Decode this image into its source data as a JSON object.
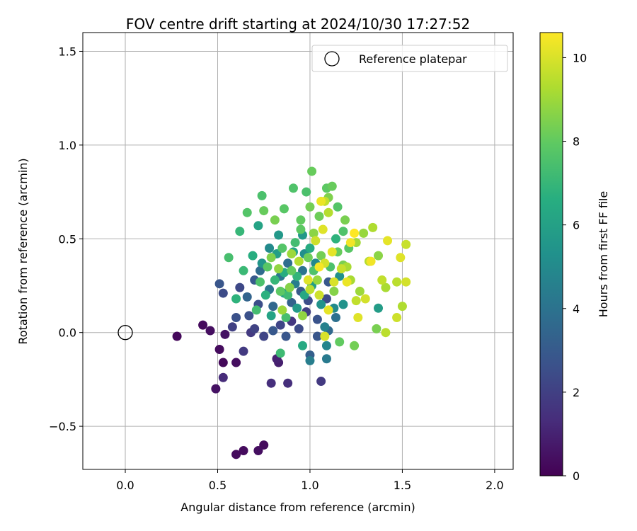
{
  "chart_data": {
    "type": "scatter",
    "title": "FOV centre drift starting at 2024/10/30 17:27:52",
    "xlabel": "Angular distance from reference (arcmin)",
    "ylabel": "Rotation from reference (arcmin)",
    "xlim": [
      -0.23,
      2.1
    ],
    "ylim": [
      -0.73,
      1.6
    ],
    "xticks": [
      0.0,
      0.5,
      1.0,
      1.5,
      2.0
    ],
    "xtick_labels": [
      "0.0",
      "0.5",
      "1.0",
      "1.5",
      "2.0"
    ],
    "yticks": [
      -0.5,
      0.0,
      0.5,
      1.0,
      1.5
    ],
    "ytick_labels": [
      "−0.5",
      "0.0",
      "0.5",
      "1.0",
      "1.5"
    ],
    "grid": true,
    "colormap": "viridis",
    "colorbar": {
      "label": "Hours from first FF file",
      "min": 0,
      "max": 10.6,
      "ticks": [
        0,
        2,
        4,
        6,
        8,
        10
      ],
      "tick_labels": [
        "0",
        "2",
        "4",
        "6",
        "8",
        "10"
      ]
    },
    "legend": {
      "position": "top-right",
      "entries": [
        "Reference platepar"
      ]
    },
    "reference_point": {
      "name": "Reference platepar",
      "x": 0.0,
      "y": 0.0
    },
    "points": [
      {
        "x": 0.28,
        "y": -0.02,
        "h": 0.2
      },
      {
        "x": 0.42,
        "y": 0.04,
        "h": 0.3
      },
      {
        "x": 0.46,
        "y": 0.01,
        "h": 0.4
      },
      {
        "x": 0.51,
        "y": -0.09,
        "h": 0.3
      },
      {
        "x": 0.53,
        "y": -0.16,
        "h": 0.2
      },
      {
        "x": 0.54,
        "y": -0.01,
        "h": 0.5
      },
      {
        "x": 0.49,
        "y": -0.3,
        "h": 0.5
      },
      {
        "x": 0.6,
        "y": -0.16,
        "h": 0.4
      },
      {
        "x": 0.53,
        "y": -0.24,
        "h": 1.3
      },
      {
        "x": 0.64,
        "y": -0.1,
        "h": 1.8
      },
      {
        "x": 0.6,
        "y": -0.65,
        "h": 0.3
      },
      {
        "x": 0.64,
        "y": -0.63,
        "h": 0.3
      },
      {
        "x": 0.72,
        "y": -0.63,
        "h": 0.4
      },
      {
        "x": 0.75,
        "y": -0.6,
        "h": 0.3
      },
      {
        "x": 0.79,
        "y": -0.27,
        "h": 1.4
      },
      {
        "x": 0.88,
        "y": -0.27,
        "h": 1.4
      },
      {
        "x": 0.82,
        "y": -0.14,
        "h": 1.0
      },
      {
        "x": 0.83,
        "y": -0.16,
        "h": 0.9
      },
      {
        "x": 0.51,
        "y": 0.26,
        "h": 2.8
      },
      {
        "x": 0.53,
        "y": 0.21,
        "h": 2.4
      },
      {
        "x": 0.58,
        "y": 0.03,
        "h": 2.0
      },
      {
        "x": 0.6,
        "y": 0.08,
        "h": 2.6
      },
      {
        "x": 0.62,
        "y": 0.24,
        "h": 2.3
      },
      {
        "x": 0.67,
        "y": 0.09,
        "h": 2.6
      },
      {
        "x": 0.68,
        "y": 0.0,
        "h": 1.8
      },
      {
        "x": 0.7,
        "y": 0.02,
        "h": 2.1
      },
      {
        "x": 0.72,
        "y": 0.15,
        "h": 2.5
      },
      {
        "x": 0.75,
        "y": -0.02,
        "h": 2.2
      },
      {
        "x": 0.8,
        "y": 0.01,
        "h": 2.9
      },
      {
        "x": 0.84,
        "y": 0.04,
        "h": 2.2
      },
      {
        "x": 0.87,
        "y": -0.02,
        "h": 2.8
      },
      {
        "x": 0.9,
        "y": 0.06,
        "h": 1.7
      },
      {
        "x": 0.94,
        "y": 0.02,
        "h": 2.4
      },
      {
        "x": 0.98,
        "y": 0.11,
        "h": 2.0
      },
      {
        "x": 1.04,
        "y": 0.07,
        "h": 2.7
      },
      {
        "x": 1.06,
        "y": -0.26,
        "h": 1.8
      },
      {
        "x": 1.0,
        "y": -0.12,
        "h": 3.2
      },
      {
        "x": 1.04,
        "y": -0.02,
        "h": 2.8
      },
      {
        "x": 1.1,
        "y": 0.01,
        "h": 3.6
      },
      {
        "x": 1.14,
        "y": 0.08,
        "h": 3.9
      },
      {
        "x": 0.9,
        "y": 0.16,
        "h": 3.3
      },
      {
        "x": 0.95,
        "y": 0.22,
        "h": 3.0
      },
      {
        "x": 0.99,
        "y": 0.17,
        "h": 2.5
      },
      {
        "x": 1.09,
        "y": 0.18,
        "h": 2.4
      },
      {
        "x": 1.1,
        "y": 0.27,
        "h": 2.9
      },
      {
        "x": 0.66,
        "y": 0.19,
        "h": 3.4
      },
      {
        "x": 0.7,
        "y": 0.28,
        "h": 3.0
      },
      {
        "x": 0.73,
        "y": 0.33,
        "h": 3.7
      },
      {
        "x": 0.78,
        "y": 0.23,
        "h": 4.1
      },
      {
        "x": 0.8,
        "y": 0.14,
        "h": 3.5
      },
      {
        "x": 0.84,
        "y": 0.3,
        "h": 4.2
      },
      {
        "x": 0.88,
        "y": 0.37,
        "h": 3.8
      },
      {
        "x": 0.92,
        "y": 0.26,
        "h": 4.4
      },
      {
        "x": 0.96,
        "y": 0.33,
        "h": 4.0
      },
      {
        "x": 1.0,
        "y": -0.15,
        "h": 4.5
      },
      {
        "x": 1.09,
        "y": -0.14,
        "h": 4.3
      },
      {
        "x": 1.09,
        "y": -0.07,
        "h": 4.8
      },
      {
        "x": 1.08,
        "y": 0.03,
        "h": 4.6
      },
      {
        "x": 1.13,
        "y": 0.13,
        "h": 5.0
      },
      {
        "x": 1.18,
        "y": 0.15,
        "h": 5.4
      },
      {
        "x": 1.37,
        "y": 0.13,
        "h": 5.8
      },
      {
        "x": 1.03,
        "y": 0.37,
        "h": 4.9
      },
      {
        "x": 0.97,
        "y": 0.42,
        "h": 5.2
      },
      {
        "x": 0.74,
        "y": 0.37,
        "h": 5.5
      },
      {
        "x": 0.78,
        "y": 0.45,
        "h": 5.0
      },
      {
        "x": 0.83,
        "y": 0.52,
        "h": 5.6
      },
      {
        "x": 0.72,
        "y": 0.57,
        "h": 6.1
      },
      {
        "x": 0.82,
        "y": 0.42,
        "h": 5.9
      },
      {
        "x": 0.86,
        "y": 0.21,
        "h": 6.0
      },
      {
        "x": 0.93,
        "y": 0.13,
        "h": 5.7
      },
      {
        "x": 0.96,
        "y": -0.07,
        "h": 6.4
      },
      {
        "x": 0.84,
        "y": -0.11,
        "h": 7.2
      },
      {
        "x": 0.87,
        "y": 0.08,
        "h": 7.4
      },
      {
        "x": 0.6,
        "y": 0.18,
        "h": 6.8
      },
      {
        "x": 0.64,
        "y": 0.33,
        "h": 7.1
      },
      {
        "x": 0.69,
        "y": 0.41,
        "h": 6.6
      },
      {
        "x": 0.73,
        "y": 0.27,
        "h": 7.5
      },
      {
        "x": 0.77,
        "y": 0.35,
        "h": 7.8
      },
      {
        "x": 0.81,
        "y": 0.28,
        "h": 7.0
      },
      {
        "x": 0.85,
        "y": 0.45,
        "h": 7.7
      },
      {
        "x": 0.9,
        "y": 0.33,
        "h": 8.0
      },
      {
        "x": 0.92,
        "y": 0.48,
        "h": 7.3
      },
      {
        "x": 0.95,
        "y": 0.55,
        "h": 7.9
      },
      {
        "x": 0.99,
        "y": 0.4,
        "h": 8.2
      },
      {
        "x": 1.02,
        "y": 0.33,
        "h": 7.6
      },
      {
        "x": 1.06,
        "y": 0.41,
        "h": 8.3
      },
      {
        "x": 1.11,
        "y": 0.35,
        "h": 7.5
      },
      {
        "x": 1.15,
        "y": 0.43,
        "h": 8.1
      },
      {
        "x": 1.18,
        "y": 0.36,
        "h": 8.4
      },
      {
        "x": 1.21,
        "y": 0.45,
        "h": 7.8
      },
      {
        "x": 1.13,
        "y": 0.22,
        "h": 8.6
      },
      {
        "x": 1.16,
        "y": -0.05,
        "h": 8.0
      },
      {
        "x": 1.24,
        "y": -0.07,
        "h": 8.3
      },
      {
        "x": 1.36,
        "y": 0.02,
        "h": 8.4
      },
      {
        "x": 0.56,
        "y": 0.4,
        "h": 7.4
      },
      {
        "x": 0.62,
        "y": 0.54,
        "h": 7.0
      },
      {
        "x": 0.66,
        "y": 0.64,
        "h": 7.7
      },
      {
        "x": 0.74,
        "y": 0.73,
        "h": 7.5
      },
      {
        "x": 0.75,
        "y": 0.65,
        "h": 8.1
      },
      {
        "x": 0.81,
        "y": 0.6,
        "h": 8.4
      },
      {
        "x": 0.86,
        "y": 0.66,
        "h": 7.8
      },
      {
        "x": 0.91,
        "y": 0.77,
        "h": 7.6
      },
      {
        "x": 0.95,
        "y": 0.6,
        "h": 8.0
      },
      {
        "x": 0.98,
        "y": 0.75,
        "h": 7.5
      },
      {
        "x": 1.0,
        "y": 0.67,
        "h": 8.3
      },
      {
        "x": 1.02,
        "y": 0.53,
        "h": 8.7
      },
      {
        "x": 1.05,
        "y": 0.62,
        "h": 8.2
      },
      {
        "x": 1.09,
        "y": 0.77,
        "h": 7.9
      },
      {
        "x": 1.1,
        "y": 0.72,
        "h": 8.5
      },
      {
        "x": 1.12,
        "y": 0.78,
        "h": 8.1
      },
      {
        "x": 1.15,
        "y": 0.67,
        "h": 7.7
      },
      {
        "x": 1.19,
        "y": 0.6,
        "h": 8.4
      },
      {
        "x": 1.01,
        "y": 0.86,
        "h": 8.1
      },
      {
        "x": 1.04,
        "y": 0.28,
        "h": 8.9
      },
      {
        "x": 0.89,
        "y": 0.24,
        "h": 8.6
      },
      {
        "x": 0.85,
        "y": 0.12,
        "h": 9.0
      },
      {
        "x": 0.96,
        "y": 0.09,
        "h": 8.8
      },
      {
        "x": 1.22,
        "y": 0.28,
        "h": 9.2
      },
      {
        "x": 1.27,
        "y": 0.22,
        "h": 9.0
      },
      {
        "x": 1.32,
        "y": 0.38,
        "h": 9.4
      },
      {
        "x": 1.25,
        "y": 0.48,
        "h": 9.1
      },
      {
        "x": 1.29,
        "y": 0.53,
        "h": 8.9
      },
      {
        "x": 1.34,
        "y": 0.56,
        "h": 9.3
      },
      {
        "x": 1.37,
        "y": 0.41,
        "h": 8.7
      },
      {
        "x": 1.39,
        "y": 0.28,
        "h": 9.6
      },
      {
        "x": 1.41,
        "y": 0.24,
        "h": 9.2
      },
      {
        "x": 1.47,
        "y": 0.27,
        "h": 9.5
      },
      {
        "x": 1.5,
        "y": 0.14,
        "h": 9.3
      },
      {
        "x": 1.52,
        "y": 0.47,
        "h": 9.7
      },
      {
        "x": 1.52,
        "y": 0.27,
        "h": 9.9
      },
      {
        "x": 1.49,
        "y": 0.4,
        "h": 10.1
      },
      {
        "x": 1.47,
        "y": 0.08,
        "h": 9.8
      },
      {
        "x": 1.41,
        "y": 0.0,
        "h": 9.5
      },
      {
        "x": 1.42,
        "y": 0.49,
        "h": 10.2
      },
      {
        "x": 1.33,
        "y": 0.38,
        "h": 10.4
      },
      {
        "x": 1.3,
        "y": 0.18,
        "h": 9.9
      },
      {
        "x": 1.26,
        "y": 0.08,
        "h": 10.1
      },
      {
        "x": 1.25,
        "y": 0.17,
        "h": 9.6
      },
      {
        "x": 1.2,
        "y": 0.27,
        "h": 10.3
      },
      {
        "x": 1.17,
        "y": 0.34,
        "h": 9.7
      },
      {
        "x": 1.13,
        "y": 0.27,
        "h": 10.0
      },
      {
        "x": 1.12,
        "y": 0.43,
        "h": 10.2
      },
      {
        "x": 1.08,
        "y": 0.37,
        "h": 9.9
      },
      {
        "x": 1.05,
        "y": 0.35,
        "h": 10.5
      },
      {
        "x": 1.03,
        "y": 0.49,
        "h": 9.8
      },
      {
        "x": 1.07,
        "y": 0.55,
        "h": 10.1
      },
      {
        "x": 1.1,
        "y": 0.64,
        "h": 9.4
      },
      {
        "x": 1.06,
        "y": 0.7,
        "h": 10.3
      },
      {
        "x": 1.08,
        "y": 0.7,
        "h": 9.6
      },
      {
        "x": 1.22,
        "y": 0.48,
        "h": 10.4
      },
      {
        "x": 1.24,
        "y": 0.53,
        "h": 10.6
      },
      {
        "x": 1.0,
        "y": 0.23,
        "h": 9.5
      },
      {
        "x": 1.05,
        "y": 0.2,
        "h": 9.8
      },
      {
        "x": 1.1,
        "y": 0.12,
        "h": 10.2
      },
      {
        "x": 1.08,
        "y": -0.02,
        "h": 10.0
      },
      {
        "x": 1.2,
        "y": 0.35,
        "h": 9.2
      },
      {
        "x": 0.9,
        "y": 0.42,
        "h": 9.0
      },
      {
        "x": 0.94,
        "y": 0.38,
        "h": 9.4
      },
      {
        "x": 0.99,
        "y": 0.28,
        "h": 10.1
      },
      {
        "x": 0.83,
        "y": 0.34,
        "h": 8.8
      },
      {
        "x": 0.79,
        "y": 0.4,
        "h": 8.5
      },
      {
        "x": 0.84,
        "y": 0.22,
        "h": 7.9
      },
      {
        "x": 0.88,
        "y": 0.2,
        "h": 7.2
      },
      {
        "x": 0.93,
        "y": 0.3,
        "h": 6.9
      },
      {
        "x": 0.97,
        "y": 0.2,
        "h": 6.3
      },
      {
        "x": 1.01,
        "y": 0.25,
        "h": 5.9
      },
      {
        "x": 1.06,
        "y": 0.15,
        "h": 5.4
      },
      {
        "x": 0.86,
        "y": 0.32,
        "h": 6.6
      },
      {
        "x": 0.91,
        "y": 0.43,
        "h": 6.2
      },
      {
        "x": 0.76,
        "y": 0.2,
        "h": 6.7
      },
      {
        "x": 0.71,
        "y": 0.12,
        "h": 7.3
      },
      {
        "x": 0.79,
        "y": 0.09,
        "h": 6.1
      },
      {
        "x": 0.96,
        "y": 0.52,
        "h": 5.6
      },
      {
        "x": 1.0,
        "y": 0.45,
        "h": 6.5
      },
      {
        "x": 1.14,
        "y": 0.5,
        "h": 6.8
      },
      {
        "x": 1.18,
        "y": 0.54,
        "h": 7.6
      },
      {
        "x": 1.16,
        "y": 0.3,
        "h": 5.3
      }
    ]
  }
}
